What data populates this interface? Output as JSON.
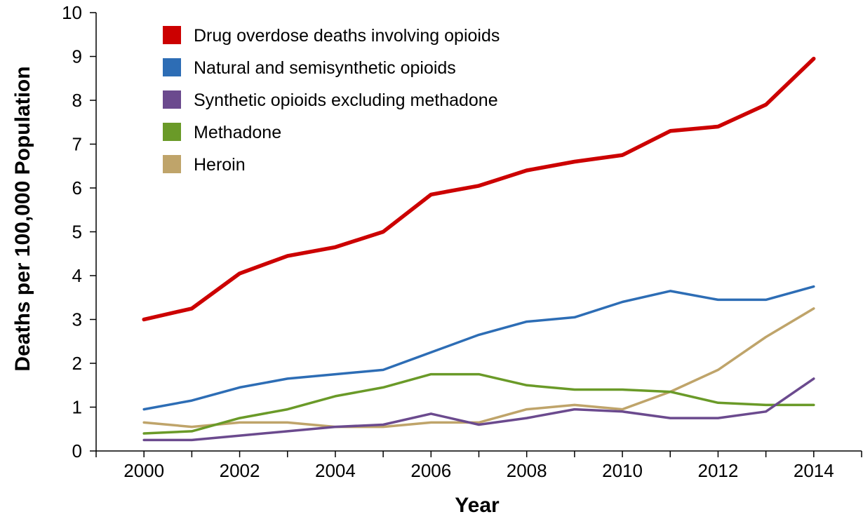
{
  "chart_data": {
    "type": "line",
    "xlabel": "Year",
    "ylabel": "Deaths per 100,000 Population",
    "xlim": [
      1999,
      2015
    ],
    "ylim": [
      0,
      10
    ],
    "x": [
      2000,
      2001,
      2002,
      2003,
      2004,
      2005,
      2006,
      2007,
      2008,
      2009,
      2010,
      2011,
      2012,
      2013,
      2014
    ],
    "x_ticks": [
      2000,
      2002,
      2004,
      2006,
      2008,
      2010,
      2012,
      2014
    ],
    "y_ticks": [
      0,
      1,
      2,
      3,
      4,
      5,
      6,
      7,
      8,
      9,
      10
    ],
    "grid": false,
    "legend_position": "top-left",
    "series": [
      {
        "name": "Drug overdose deaths involving opioids",
        "color": "#cc0000",
        "values": [
          3.0,
          3.25,
          4.05,
          4.45,
          4.65,
          5.0,
          5.85,
          6.05,
          6.4,
          6.6,
          6.75,
          7.3,
          7.4,
          7.9,
          8.95
        ]
      },
      {
        "name": "Natural and semisynthetic opioids",
        "color": "#2d6db5",
        "values": [
          0.95,
          1.15,
          1.45,
          1.65,
          1.75,
          1.85,
          2.25,
          2.65,
          2.95,
          3.05,
          3.4,
          3.65,
          3.45,
          3.45,
          3.75
        ]
      },
      {
        "name": "Synthetic opioids excluding methadone",
        "color": "#6b4a8e",
        "values": [
          0.25,
          0.25,
          0.35,
          0.45,
          0.55,
          0.6,
          0.85,
          0.6,
          0.75,
          0.95,
          0.9,
          0.75,
          0.75,
          0.9,
          1.65
        ]
      },
      {
        "name": "Methadone",
        "color": "#6a9a28",
        "values": [
          0.4,
          0.45,
          0.75,
          0.95,
          1.25,
          1.45,
          1.75,
          1.75,
          1.5,
          1.4,
          1.4,
          1.35,
          1.1,
          1.05,
          1.05
        ]
      },
      {
        "name": "Heroin",
        "color": "#bfa46a",
        "values": [
          0.65,
          0.55,
          0.65,
          0.65,
          0.55,
          0.55,
          0.65,
          0.65,
          0.95,
          1.05,
          0.95,
          1.35,
          1.85,
          2.6,
          3.25
        ]
      }
    ]
  }
}
